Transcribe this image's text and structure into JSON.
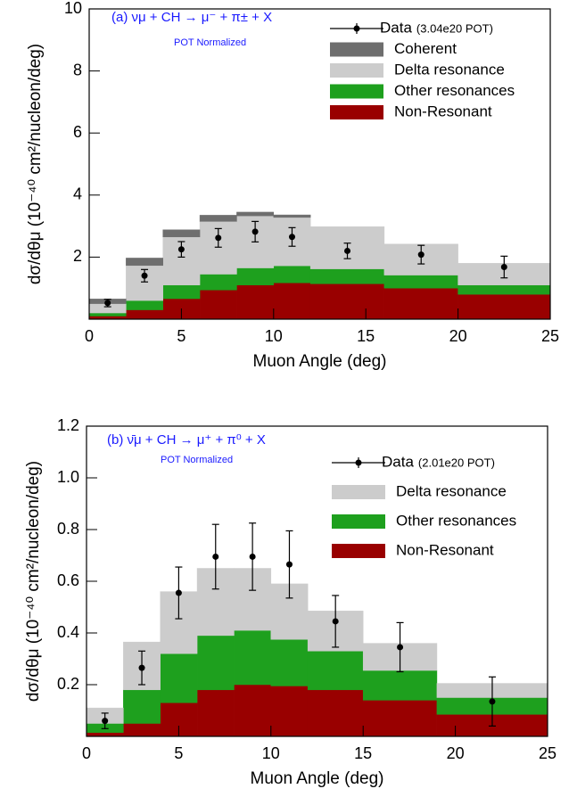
{
  "chart_data": [
    {
      "type": "stacked-histogram",
      "title": "(a)  νμ + CH → μ⁻ + π± + X",
      "subtitle": "POT Normalized",
      "x_label": "Muon Angle (deg)",
      "y_label": "dσ/dθμ (10⁻⁴⁰ cm²/nucleon/deg)",
      "bins": [
        0,
        2,
        4,
        6,
        8,
        10,
        12,
        16,
        20,
        25
      ],
      "xlim": [
        0,
        25
      ],
      "xticks": [
        0,
        5,
        10,
        15,
        20,
        25
      ],
      "ylim": [
        0,
        10
      ],
      "yticks": [
        2,
        4,
        6,
        8,
        10
      ],
      "legend": "upper right",
      "series": [
        {
          "name": "Non-Resonant",
          "color": "#990000",
          "values": [
            0.1,
            0.3,
            0.66,
            0.94,
            1.1,
            1.17,
            1.14,
            1.0,
            0.8
          ]
        },
        {
          "name": "Other resonances",
          "color": "#1ea01e",
          "values": [
            0.1,
            0.3,
            0.44,
            0.51,
            0.55,
            0.55,
            0.48,
            0.42,
            0.3
          ]
        },
        {
          "name": "Delta resonance",
          "color": "#cccccc",
          "values": [
            0.3,
            1.13,
            1.55,
            1.7,
            1.68,
            1.56,
            1.36,
            1.0,
            0.7
          ]
        },
        {
          "name": "Coherent",
          "color": "#6e6e6e",
          "values": [
            0.15,
            0.24,
            0.23,
            0.2,
            0.12,
            0.08,
            0.0,
            0.0,
            0.0
          ]
        }
      ],
      "data": {
        "name": "Data",
        "note": "(3.04e20 POT)",
        "color": "#000000",
        "x": [
          1,
          3,
          5,
          7,
          9,
          11,
          14,
          18,
          22.5
        ],
        "values": [
          0.52,
          1.4,
          2.25,
          2.62,
          2.82,
          2.65,
          2.2,
          2.08,
          1.68
        ],
        "errors": [
          0.12,
          0.2,
          0.25,
          0.3,
          0.33,
          0.3,
          0.25,
          0.3,
          0.35
        ]
      }
    },
    {
      "type": "stacked-histogram",
      "title": "(b)  ν̄μ + CH → μ⁺ + π⁰ + X",
      "subtitle": "POT Normalized",
      "x_label": "Muon Angle (deg)",
      "y_label": "dσ/dθμ (10⁻⁴⁰ cm²/nucleon/deg)",
      "bins": [
        0,
        2,
        4,
        6,
        8,
        10,
        12,
        15,
        19,
        25
      ],
      "xlim": [
        0,
        25
      ],
      "xticks": [
        0,
        5,
        10,
        15,
        20,
        25
      ],
      "ylim": [
        0,
        1.2
      ],
      "yticks": [
        0.2,
        0.4,
        0.6,
        0.8,
        {
          "value": 1,
          "label": "1.0"
        },
        1.2
      ],
      "legend": "upper right",
      "series": [
        {
          "name": "Non-Resonant",
          "color": "#990000",
          "values": [
            0.015,
            0.05,
            0.13,
            0.18,
            0.2,
            0.195,
            0.18,
            0.14,
            0.085
          ]
        },
        {
          "name": "Other resonances",
          "color": "#1ea01e",
          "values": [
            0.035,
            0.13,
            0.19,
            0.21,
            0.21,
            0.18,
            0.15,
            0.115,
            0.065
          ]
        },
        {
          "name": "Delta resonance",
          "color": "#cccccc",
          "values": [
            0.06,
            0.185,
            0.24,
            0.26,
            0.24,
            0.215,
            0.155,
            0.105,
            0.055
          ]
        }
      ],
      "data": {
        "name": "Data",
        "note": "(2.01e20 POT)",
        "color": "#000000",
        "x": [
          1,
          3,
          5,
          7,
          9,
          11,
          13.5,
          17,
          22
        ],
        "values": [
          0.06,
          0.265,
          0.555,
          0.695,
          0.695,
          0.665,
          0.445,
          0.345,
          0.135
        ],
        "errors": [
          0.03,
          0.065,
          0.1,
          0.125,
          0.13,
          0.13,
          0.1,
          0.095,
          0.095
        ]
      }
    }
  ]
}
